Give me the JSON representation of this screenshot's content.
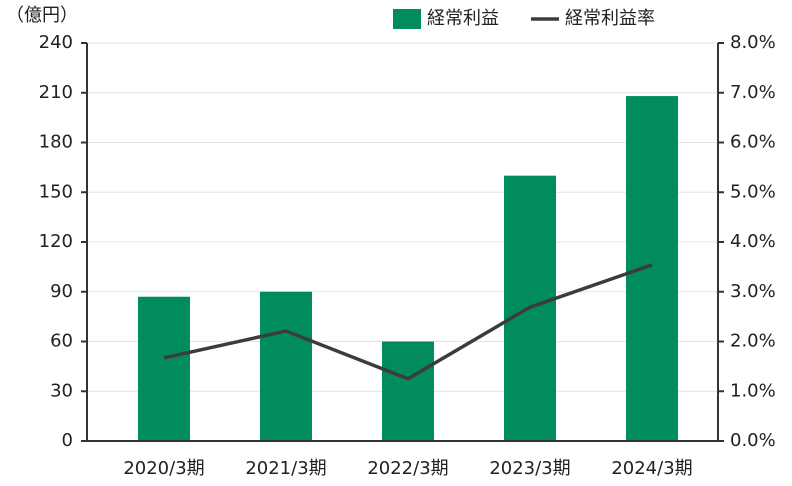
{
  "chart_data": {
    "type": "bar",
    "y_unit_label": "（億円）",
    "categories": [
      "2020/3期",
      "2021/3期",
      "2022/3期",
      "2023/3期",
      "2024/3期"
    ],
    "series": [
      {
        "name": "経常利益",
        "type": "bar",
        "color": "#008c5f",
        "values": [
          87,
          90,
          60,
          160,
          208
        ]
      },
      {
        "name": "経常利益率",
        "type": "line",
        "axis": "y2",
        "color": "#3c3c3c",
        "values": [
          1.67,
          2.21,
          1.25,
          2.69,
          3.54
        ]
      }
    ],
    "ylim": [
      0,
      240
    ],
    "yticks": [
      0,
      30,
      60,
      90,
      120,
      150,
      180,
      210,
      240
    ],
    "y2lim": [
      0,
      8
    ],
    "y2ticks": [
      {
        "value": 0,
        "label": "0.0%"
      },
      {
        "value": 1,
        "label": "1.0%"
      },
      {
        "value": 2,
        "label": "2.0%"
      },
      {
        "value": 3,
        "label": "3.0%"
      },
      {
        "value": 4,
        "label": "4.0%"
      },
      {
        "value": 5,
        "label": "5.0%"
      },
      {
        "value": 6,
        "label": "6.0%"
      },
      {
        "value": 7,
        "label": "7.0%"
      },
      {
        "value": 8,
        "label": "8.0%"
      }
    ],
    "grid": true
  }
}
